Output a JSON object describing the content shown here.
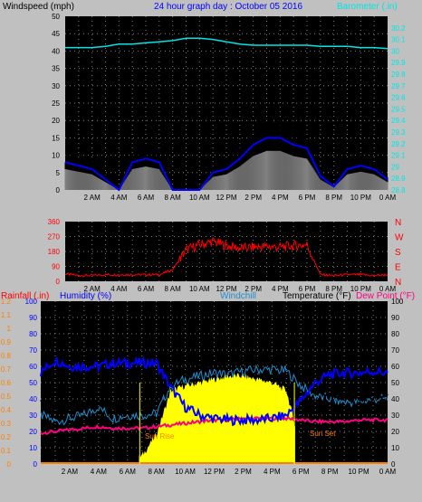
{
  "header": {
    "windspeed_label": "Windspeed (mph)",
    "title": "24 hour graph day : October 05 2016",
    "barometer_label": "Barometer (.in)"
  },
  "colors": {
    "bg": "#c0c0c0",
    "plot": "#000000",
    "grid": "#808080",
    "windspeed": "#000000",
    "wind_avg": "#808080",
    "wind_line": "#0000ff",
    "barometer": "#00e5e5",
    "direction": "#ff0000",
    "rain": "#ff8000",
    "humidity": "#0000ff",
    "windchill": "#1f8fd0",
    "temperature": "#000000",
    "dewpoint": "#ff0080",
    "solar": "#ffff00"
  },
  "time_labels": [
    "2 AM",
    "4 AM",
    "6 AM",
    "8 AM",
    "10 AM",
    "12 PM",
    "2 PM",
    "4 PM",
    "6 PM",
    "8 PM",
    "10 PM",
    "0 AM"
  ],
  "chart_data": [
    {
      "type": "line",
      "id": "wind",
      "title": "24 hour graph day : October 05 2016",
      "ylabel": "Windspeed (mph)",
      "ylabel_right": "Barometer (.in)",
      "ylim": [
        0,
        50
      ],
      "y_ticks": [
        0,
        5,
        10,
        15,
        20,
        25,
        30,
        35,
        40,
        45,
        50
      ],
      "ylim_right": [
        28.8,
        30.3
      ],
      "y_ticks_right": [
        "28.8",
        "28.9",
        "29",
        "29.1",
        "29.2",
        "29.3",
        "29.4",
        "29.5",
        "29.6",
        "29.7",
        "29.8",
        "29.9",
        "30",
        "30.1",
        "30.2"
      ],
      "x": [
        0,
        1,
        2,
        3,
        4,
        5,
        6,
        7,
        8,
        9,
        10,
        11,
        12,
        13,
        14,
        15,
        16,
        17,
        18,
        19,
        20,
        21,
        22,
        23,
        24
      ],
      "series": [
        {
          "name": "Windspeed (mph)",
          "values": [
            8,
            7,
            6,
            3,
            0,
            8,
            9,
            8,
            0,
            0,
            0,
            5,
            6,
            9,
            13,
            15,
            15,
            13,
            12,
            4,
            1,
            6,
            7,
            6,
            3
          ]
        },
        {
          "name": "Barometer (.in)",
          "values": [
            30.03,
            30.03,
            30.03,
            30.04,
            30.06,
            30.06,
            30.07,
            30.08,
            30.09,
            30.11,
            30.11,
            30.1,
            30.08,
            30.06,
            30.05,
            30.05,
            30.05,
            30.05,
            30.05,
            30.04,
            30.04,
            30.04,
            30.03,
            30.03,
            30.02
          ]
        }
      ]
    },
    {
      "type": "line",
      "id": "direction",
      "ylim": [
        0,
        360
      ],
      "y_ticks": [
        0,
        90,
        180,
        270,
        360
      ],
      "compass": [
        "N",
        "W",
        "S",
        "E",
        "N"
      ],
      "x": [
        0,
        1,
        2,
        3,
        4,
        5,
        6,
        7,
        8,
        9,
        10,
        11,
        12,
        13,
        14,
        15,
        16,
        17,
        18,
        19,
        20,
        21,
        22,
        23,
        24
      ],
      "series": [
        {
          "name": "Wind direction",
          "values": [
            45,
            35,
            35,
            40,
            40,
            40,
            40,
            40,
            70,
            190,
            220,
            240,
            215,
            200,
            205,
            210,
            205,
            215,
            220,
            40,
            35,
            40,
            40,
            35,
            40
          ]
        }
      ]
    },
    {
      "type": "line",
      "id": "climate",
      "ylim_rain": [
        0,
        1.2
      ],
      "y_ticks_rain": [
        "0",
        "0.1",
        "0.2",
        "0.3",
        "0.4",
        "0.5",
        "0.6",
        "0.7",
        "0.8",
        "0.9",
        "1",
        "1.1",
        "1.2"
      ],
      "ylim_hum": [
        0,
        100
      ],
      "y_ticks_hum": [
        0,
        10,
        20,
        30,
        40,
        50,
        60,
        70,
        80,
        90,
        100
      ],
      "ylim_temp": [
        0,
        100
      ],
      "y_ticks_temp": [
        0,
        10,
        20,
        30,
        40,
        50,
        60,
        70,
        80,
        90,
        100
      ],
      "labels": {
        "rainfall": "Rainfall (.in)",
        "humidity": "Humidity (%)",
        "windchill": "Windchill",
        "temperature": "Temperature (°F)",
        "dewpoint": "Dew Point (°F)",
        "sunrise": "Sun Rise",
        "sunset": "Sun Set"
      },
      "x": [
        0,
        1,
        2,
        3,
        4,
        5,
        6,
        7,
        8,
        9,
        10,
        11,
        12,
        13,
        14,
        15,
        16,
        17,
        18,
        19,
        20,
        21,
        22,
        23,
        24
      ],
      "series": [
        {
          "name": "Humidity (%)",
          "values": [
            56,
            64,
            60,
            60,
            60,
            62,
            62,
            62,
            62,
            47,
            35,
            30,
            28,
            27,
            27,
            27,
            28,
            30,
            39,
            50,
            55,
            56,
            56,
            57,
            56
          ]
        },
        {
          "name": "Temperature (°F)",
          "values": [
            38,
            36,
            37,
            36,
            37,
            36,
            36,
            36,
            40,
            50,
            56,
            59,
            61,
            62,
            63,
            63,
            63,
            62,
            53,
            44,
            42,
            40,
            40,
            41,
            42
          ]
        },
        {
          "name": "Windchill",
          "values": [
            30,
            26,
            28,
            30,
            35,
            28,
            30,
            30,
            31,
            48,
            52,
            54,
            56,
            55,
            57,
            58,
            58,
            57,
            48,
            42,
            40,
            38,
            38,
            40,
            40
          ]
        },
        {
          "name": "Dew Point (°F)",
          "values": [
            19,
            20,
            21,
            22,
            23,
            22,
            22,
            22,
            23,
            24,
            25,
            26,
            27,
            27,
            28,
            28,
            28,
            28,
            27,
            26,
            26,
            26,
            27,
            27,
            27
          ]
        },
        {
          "name": "Rainfall (.in)",
          "values": [
            0,
            0,
            0,
            0,
            0,
            0,
            0,
            0,
            0,
            0,
            0,
            0,
            0,
            0,
            0,
            0,
            0,
            0,
            0,
            0,
            0,
            0,
            0,
            0,
            0
          ]
        },
        {
          "name": "Solar",
          "values": [
            0,
            0,
            0,
            0,
            0,
            0,
            0,
            5,
            18,
            45,
            48,
            50,
            52,
            54,
            54,
            52,
            50,
            45,
            10,
            0,
            0,
            0,
            0,
            0,
            0
          ]
        }
      ]
    }
  ]
}
